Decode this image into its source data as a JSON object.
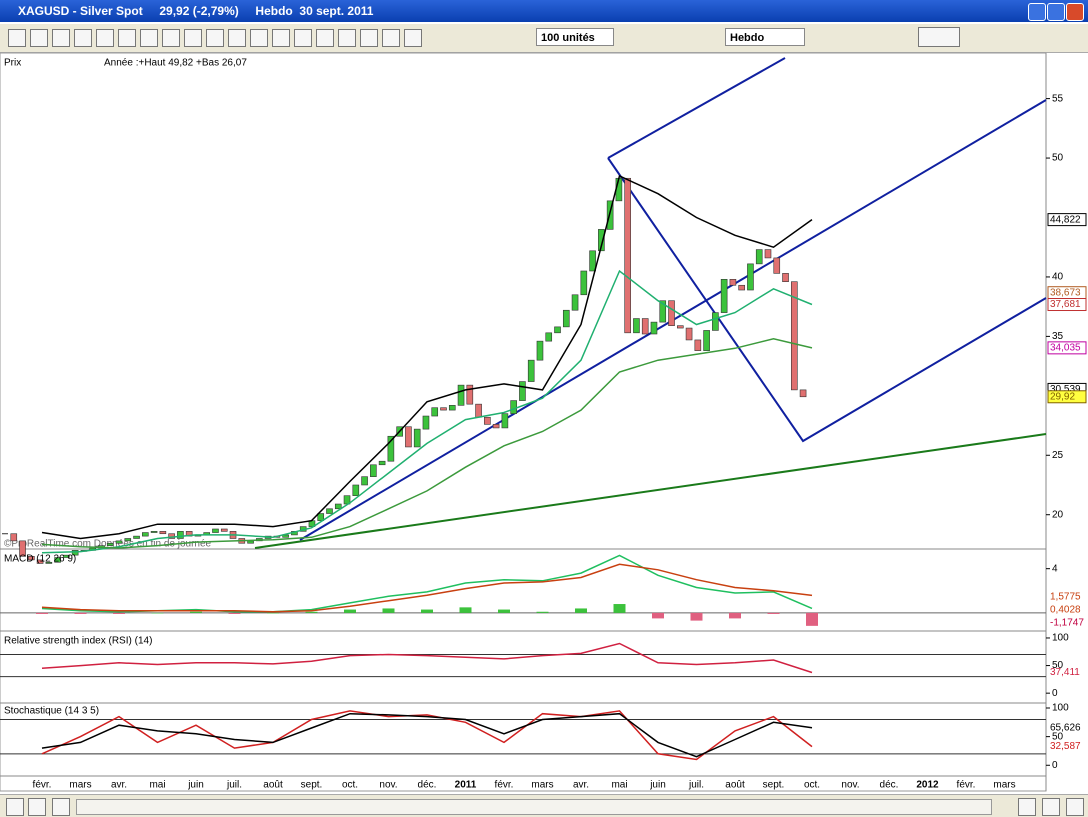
{
  "window": {
    "title": "XAGUSD - Silver Spot     29,92 (-2,79%)     Hebdo  30 sept. 2011"
  },
  "toolbar": {
    "units": "100 unités",
    "period": "Hebdo"
  },
  "watermark": "©ProRealTime.com  Données en fin de journée",
  "time_axis": {
    "labels": [
      "févr.",
      "mars",
      "avr.",
      "mai",
      "juin",
      "juil.",
      "août",
      "sept.",
      "oct.",
      "nov.",
      "déc.",
      "2011",
      "févr.",
      "mars",
      "avr.",
      "mai",
      "juin",
      "juil.",
      "août",
      "sept.",
      "oct.",
      "nov.",
      "déc.",
      "2012",
      "févr.",
      "mars"
    ]
  },
  "chart_data": [
    {
      "type": "candlestick",
      "title": "Prix",
      "subtitle": "Année :+Haut 49,82 +Bas 26,07",
      "values": [
        18.4,
        17.8,
        16.5,
        16.2,
        15.9,
        16.0,
        16.4,
        16.6,
        17.0,
        17.0,
        17.2,
        17.4,
        17.6,
        17.8,
        18.0,
        18.2,
        18.5,
        18.6,
        18.4,
        18.0,
        18.6,
        18.2,
        18.3,
        18.5,
        18.8,
        18.6,
        18.0,
        17.6,
        17.8,
        18.0,
        18.2,
        18.1,
        18.3,
        18.6,
        19.0,
        19.5,
        20.1,
        20.5,
        20.9,
        21.6,
        22.5,
        23.2,
        24.2,
        24.5,
        26.6,
        27.4,
        25.7,
        27.2,
        28.3,
        29.0,
        28.8,
        29.2,
        30.9,
        29.3,
        28.2,
        27.6,
        27.3,
        28.5,
        29.6,
        31.2,
        33.0,
        34.6,
        35.3,
        35.8,
        37.2,
        38.5,
        40.5,
        42.2,
        44.0,
        46.4,
        48.3,
        35.3,
        36.5,
        35.2,
        36.2,
        38.0,
        35.9,
        35.7,
        34.7,
        33.8,
        35.5,
        37.0,
        39.8,
        39.3,
        38.9,
        41.1,
        42.3,
        41.6,
        40.3,
        39.6,
        30.5,
        29.92
      ],
      "up_color": "#3cc23c",
      "down_color": "#e07070",
      "series": [
        {
          "color": "#20b070",
          "values": [
            16.8,
            16.9,
            17.3,
            18.0,
            18.3,
            18.3,
            18.1,
            18.9,
            21.0,
            23.5,
            26.0,
            28.0,
            28.6,
            29.8,
            33.0,
            40.5,
            38.0,
            36.0,
            37.0,
            39.0,
            37.681,
            null,
            null,
            null,
            null,
            null
          ]
        },
        {
          "color": "#3c9a3c",
          "values": [
            17.5,
            17.3,
            17.2,
            17.4,
            17.7,
            17.8,
            17.9,
            18.1,
            19.0,
            20.5,
            22.0,
            24.0,
            25.8,
            27.0,
            28.8,
            32.0,
            33.0,
            33.5,
            34.0,
            34.8,
            34.035,
            null,
            null,
            null,
            null,
            null
          ]
        },
        {
          "color": "#000000",
          "values": [
            18.5,
            18.0,
            18.4,
            19.2,
            19.2,
            19.2,
            19.0,
            19.5,
            22.8,
            26.0,
            29.5,
            30.5,
            31.0,
            30.5,
            36.0,
            48.5,
            47.0,
            45.0,
            43.5,
            42.5,
            44.822,
            null,
            null,
            null,
            null,
            null
          ]
        }
      ],
      "price_labels": [
        {
          "value": 44.822,
          "label": "44,822",
          "color": "#000000"
        },
        {
          "value": 38.673,
          "label": "38,673",
          "color": "#b05a20"
        },
        {
          "value": 37.681,
          "label": "37,681",
          "color": "#c03030"
        },
        {
          "value": 34.035,
          "label": "34,035",
          "color": "#c000a0"
        },
        {
          "value": 30.539,
          "label": "30,539",
          "color": "#000000"
        },
        {
          "value": 29.92,
          "label": "29,92",
          "color": "#806000"
        }
      ],
      "ylim": [
        17.2,
        58.5
      ],
      "yticks": [
        20,
        25,
        35,
        40,
        50,
        55
      ]
    },
    {
      "type": "macd",
      "title": "MACD (12 26 9)",
      "series": [
        {
          "color": "#1fbf5f",
          "values": [
            0.4,
            0.2,
            0.1,
            0.2,
            0.3,
            0.1,
            0.1,
            0.3,
            0.9,
            1.5,
            1.9,
            2.7,
            3.0,
            2.9,
            3.6,
            5.2,
            3.4,
            2.3,
            1.8,
            1.9,
            0.4028,
            null,
            null,
            null,
            null,
            null
          ]
        },
        {
          "color": "#c84010",
          "values": [
            0.5,
            0.3,
            0.2,
            0.2,
            0.2,
            0.2,
            0.1,
            0.2,
            0.6,
            1.1,
            1.6,
            2.2,
            2.7,
            2.8,
            3.2,
            4.4,
            3.9,
            3.0,
            2.3,
            2.0,
            1.5775,
            null,
            null,
            null,
            null,
            null
          ]
        }
      ],
      "histogram": [
        -0.1,
        -0.1,
        -0.1,
        0,
        0.1,
        -0.1,
        0,
        0.1,
        0.3,
        0.4,
        0.3,
        0.5,
        0.3,
        0.1,
        0.4,
        0.8,
        -0.5,
        -0.7,
        -0.5,
        -0.1,
        -1.1747,
        null,
        null,
        null,
        null,
        null
      ],
      "value_labels": [
        "1,5775",
        "0,4028",
        "-1,1747"
      ],
      "ylim": [
        -1.55,
        5.6
      ],
      "yticks": [
        4
      ]
    },
    {
      "type": "oscillator",
      "title": "Relative strength index (RSI) (14)",
      "series": [
        {
          "color": "#d02040",
          "values": [
            45,
            50,
            55,
            52,
            55,
            55,
            53,
            58,
            68,
            70,
            68,
            65,
            62,
            68,
            72,
            90,
            55,
            52,
            55,
            60,
            37.411,
            null,
            null,
            null,
            null,
            null
          ]
        }
      ],
      "value_labels": [
        "37,411"
      ],
      "levels": [
        30,
        70
      ],
      "ylim": [
        -16,
        109
      ],
      "yticks": [
        0,
        50,
        100
      ]
    },
    {
      "type": "oscillator",
      "title": "Stochastique (14 3 5)",
      "series": [
        {
          "color": "#d02020",
          "values": [
            20,
            50,
            85,
            40,
            70,
            30,
            40,
            80,
            95,
            85,
            88,
            75,
            40,
            90,
            85,
            95,
            20,
            10,
            60,
            85,
            32.587,
            null,
            null,
            null,
            null,
            null
          ]
        },
        {
          "color": "#000000",
          "values": [
            30,
            40,
            70,
            60,
            55,
            45,
            40,
            65,
            90,
            88,
            85,
            80,
            55,
            80,
            85,
            90,
            40,
            15,
            45,
            75,
            65.626,
            null,
            null,
            null,
            null,
            null
          ]
        }
      ],
      "value_labels": [
        "32,587",
        "65,626"
      ],
      "levels": [
        20,
        80
      ],
      "ylim": [
        -17,
        107
      ],
      "yticks": [
        0,
        50,
        100
      ]
    }
  ]
}
